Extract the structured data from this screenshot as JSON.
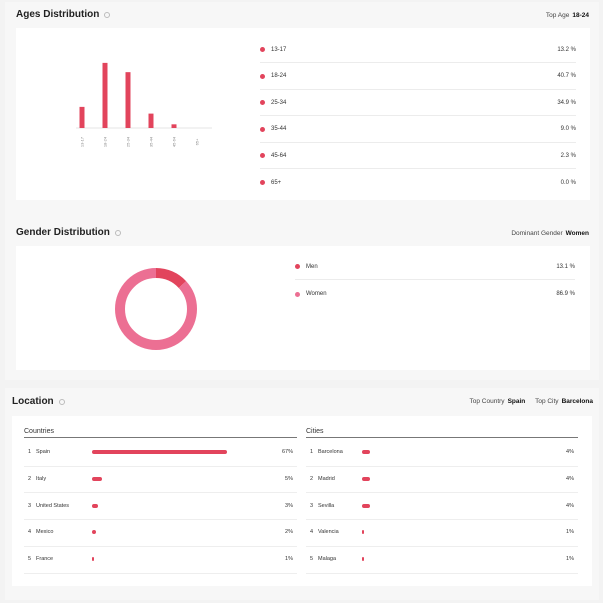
{
  "ages": {
    "title": "Ages Distribution",
    "top_label": "Top Age",
    "top_value": "18-24",
    "items": [
      {
        "label": "13-17",
        "value": "13.2 %"
      },
      {
        "label": "18-24",
        "value": "40.7 %"
      },
      {
        "label": "25-34",
        "value": "34.9 %"
      },
      {
        "label": "35-44",
        "value": "9.0 %"
      },
      {
        "label": "45-64",
        "value": "2.3 %"
      },
      {
        "label": "65+",
        "value": "0.0 %"
      }
    ]
  },
  "gender": {
    "title": "Gender Distribution",
    "dominant_label": "Dominant Gender",
    "dominant_value": "Women",
    "items": [
      {
        "label": "Men",
        "value": "13.1 %"
      },
      {
        "label": "Women",
        "value": "86.9 %"
      }
    ]
  },
  "location": {
    "title": "Location",
    "top_country_label": "Top Country",
    "top_country_value": "Spain",
    "top_city_label": "Top City",
    "top_city_value": "Barcelona",
    "countries_heading": "Countries",
    "cities_heading": "Cities",
    "countries": [
      {
        "rank": "1",
        "name": "Spain",
        "value": "67%"
      },
      {
        "rank": "2",
        "name": "Italy",
        "value": "5%"
      },
      {
        "rank": "3",
        "name": "United States",
        "value": "3%"
      },
      {
        "rank": "4",
        "name": "Mexico",
        "value": "2%"
      },
      {
        "rank": "5",
        "name": "France",
        "value": "1%"
      }
    ],
    "cities": [
      {
        "rank": "1",
        "name": "Barcelona",
        "value": "4%"
      },
      {
        "rank": "2",
        "name": "Madrid",
        "value": "4%"
      },
      {
        "rank": "3",
        "name": "Sevilla",
        "value": "4%"
      },
      {
        "rank": "4",
        "name": "Valencia",
        "value": "1%"
      },
      {
        "rank": "5",
        "name": "Malaga",
        "value": "1%"
      }
    ]
  },
  "colors": {
    "accent": "#e2445c",
    "women": "#ec6f93",
    "men": "#e2445c"
  },
  "chart_data": [
    {
      "type": "bar",
      "categories": [
        "13-17",
        "18-24",
        "25-34",
        "35-44",
        "45-64",
        "65+"
      ],
      "values": [
        13.2,
        40.7,
        34.9,
        9.0,
        2.3,
        0.0
      ],
      "ylim": [
        0,
        45
      ]
    },
    {
      "type": "pie",
      "categories": [
        "Men",
        "Women"
      ],
      "values": [
        13.1,
        86.9
      ]
    }
  ]
}
